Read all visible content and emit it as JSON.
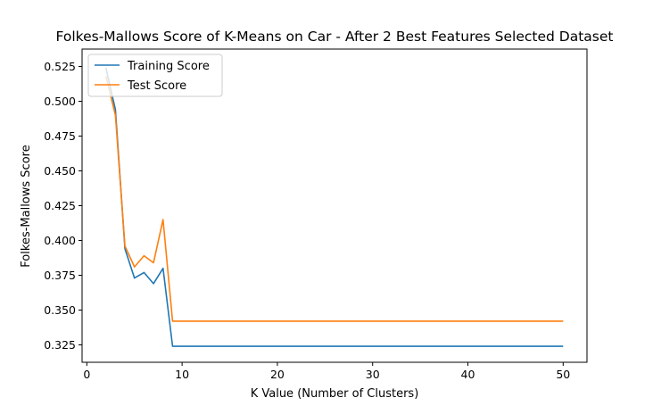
{
  "chart_data": {
    "type": "line",
    "title": "Folkes-Mallows Score of K-Means on Car - After 2 Best Features Selected Dataset",
    "xlabel": "K Value (Number of Clusters)",
    "ylabel": "Folkes-Mallows Score",
    "xlim": [
      -0.5,
      52.5
    ],
    "ylim": [
      0.3125,
      0.5375
    ],
    "xticks": [
      0,
      10,
      20,
      30,
      40,
      50
    ],
    "xtick_labels": [
      "0",
      "10",
      "20",
      "30",
      "40",
      "50"
    ],
    "yticks": [
      0.325,
      0.35,
      0.375,
      0.4,
      0.425,
      0.45,
      0.475,
      0.5,
      0.525
    ],
    "ytick_labels": [
      "0.325",
      "0.350",
      "0.375",
      "0.400",
      "0.425",
      "0.450",
      "0.475",
      "0.500",
      "0.525"
    ],
    "legend_position": "top-left",
    "grid": false,
    "series": [
      {
        "name": "Training Score",
        "color": "#1f77b4",
        "x": [
          2,
          3,
          4,
          5,
          6,
          7,
          8,
          9,
          10,
          11,
          12,
          13,
          14,
          15,
          16,
          17,
          18,
          19,
          20,
          21,
          22,
          23,
          24,
          25,
          26,
          27,
          28,
          29,
          30,
          31,
          32,
          33,
          34,
          35,
          36,
          37,
          38,
          39,
          40,
          41,
          42,
          43,
          44,
          45,
          46,
          47,
          48,
          49,
          50
        ],
        "values": [
          0.524,
          0.494,
          0.394,
          0.373,
          0.377,
          0.369,
          0.38,
          0.324,
          0.324,
          0.324,
          0.324,
          0.324,
          0.324,
          0.324,
          0.324,
          0.324,
          0.324,
          0.324,
          0.324,
          0.324,
          0.324,
          0.324,
          0.324,
          0.324,
          0.324,
          0.324,
          0.324,
          0.324,
          0.324,
          0.324,
          0.324,
          0.324,
          0.324,
          0.324,
          0.324,
          0.324,
          0.324,
          0.324,
          0.324,
          0.324,
          0.324,
          0.324,
          0.324,
          0.324,
          0.324,
          0.324,
          0.324,
          0.324,
          0.324
        ]
      },
      {
        "name": "Test Score",
        "color": "#ff7f0e",
        "x": [
          2,
          3,
          4,
          5,
          6,
          7,
          8,
          9,
          10,
          11,
          12,
          13,
          14,
          15,
          16,
          17,
          18,
          19,
          20,
          21,
          22,
          23,
          24,
          25,
          26,
          27,
          28,
          29,
          30,
          31,
          32,
          33,
          34,
          35,
          36,
          37,
          38,
          39,
          40,
          41,
          42,
          43,
          44,
          45,
          46,
          47,
          48,
          49,
          50
        ],
        "values": [
          0.518,
          0.49,
          0.396,
          0.381,
          0.389,
          0.384,
          0.415,
          0.342,
          0.342,
          0.342,
          0.342,
          0.342,
          0.342,
          0.342,
          0.342,
          0.342,
          0.342,
          0.342,
          0.342,
          0.342,
          0.342,
          0.342,
          0.342,
          0.342,
          0.342,
          0.342,
          0.342,
          0.342,
          0.342,
          0.342,
          0.342,
          0.342,
          0.342,
          0.342,
          0.342,
          0.342,
          0.342,
          0.342,
          0.342,
          0.342,
          0.342,
          0.342,
          0.342,
          0.342,
          0.342,
          0.342,
          0.342,
          0.342,
          0.342
        ]
      }
    ]
  }
}
